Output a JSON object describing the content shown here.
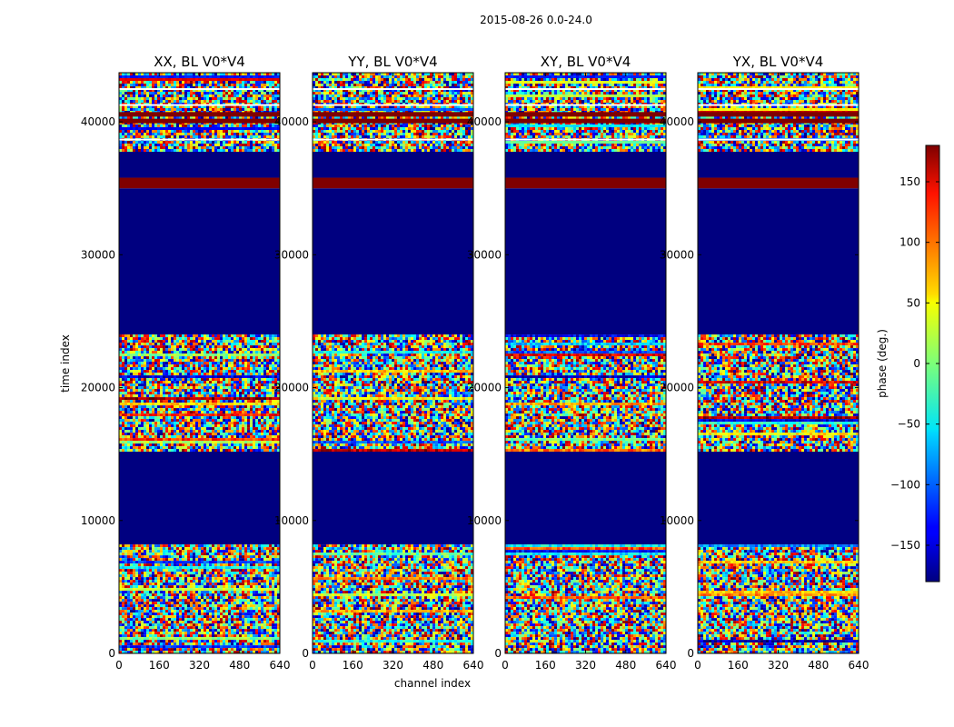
{
  "colors": {
    "background": "#ffffff",
    "axis": "#000000"
  },
  "chart_data": {
    "type": "heatmap",
    "suptitle": "2015-08-26 0.0-24.0",
    "xlabel": "channel index",
    "ylabel": "time index",
    "xlim": [
      0,
      640
    ],
    "ylim": [
      0,
      43700
    ],
    "xticks": [
      0,
      160,
      320,
      480,
      640
    ],
    "yticks": [
      0,
      10000,
      20000,
      30000,
      40000
    ],
    "panels": [
      {
        "id": "xx",
        "title": "XX, BL V0*V4"
      },
      {
        "id": "yy",
        "title": "YY, BL V0*V4"
      },
      {
        "id": "xy",
        "title": "XY, BL V0*V4"
      },
      {
        "id": "yx",
        "title": "YX, BL V0*V4"
      }
    ],
    "colorbar": {
      "label": "phase (deg.)",
      "min": -180,
      "max": 180,
      "ticks": [
        150,
        100,
        50,
        0,
        -50,
        -100,
        -150
      ],
      "tick_labels": [
        "150",
        "100",
        "50",
        "0",
        "−50",
        "−100",
        "−150"
      ],
      "colormap": "jet"
    },
    "segments": [
      {
        "from": 0,
        "to": 8200,
        "kind": "noise"
      },
      {
        "from": 8200,
        "to": 15200,
        "kind": "flat",
        "phase": -180
      },
      {
        "from": 15200,
        "to": 24000,
        "kind": "noise"
      },
      {
        "from": 24000,
        "to": 35000,
        "kind": "flat",
        "phase": -180
      },
      {
        "from": 35000,
        "to": 35800,
        "kind": "band",
        "phase": 180
      },
      {
        "from": 35800,
        "to": 37800,
        "kind": "flat",
        "phase": -180
      },
      {
        "from": 37800,
        "to": 43700,
        "kind": "mixed"
      }
    ]
  }
}
